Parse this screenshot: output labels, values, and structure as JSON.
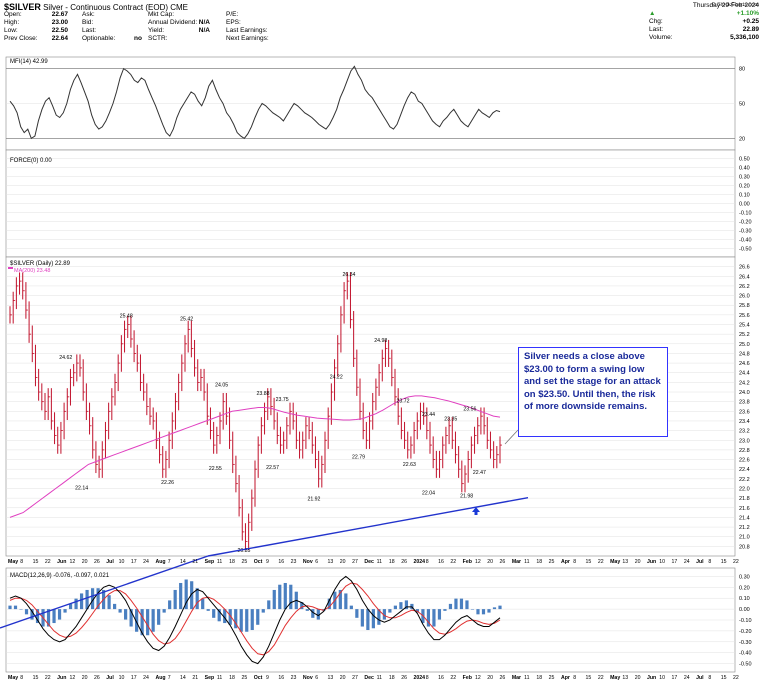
{
  "header": {
    "symbol": "$SILVER",
    "subtitle": "Silver - Continuous Contract (EOD) CME",
    "credit": "© StockCharts.com",
    "date": "Thursday 29-Feb-2024",
    "stats_left": [
      {
        "label": "Open:",
        "value": "22.67"
      },
      {
        "label": "High:",
        "value": "23.00"
      },
      {
        "label": "Low:",
        "value": "22.50"
      },
      {
        "label": "Prev Close:",
        "value": "22.64"
      }
    ],
    "stats_mid1": [
      {
        "label": "Ask:",
        "value": ""
      },
      {
        "label": "Bid:",
        "value": ""
      },
      {
        "label": "Last:",
        "value": ""
      },
      {
        "label": "Optionable:",
        "value": "no"
      }
    ],
    "stats_mid2": [
      {
        "label": "Mkt Cap:",
        "value": ""
      },
      {
        "label": "Annual Dividend:",
        "value": "N/A"
      },
      {
        "label": "Yield:",
        "value": "N/A"
      },
      {
        "label": "SCTR:",
        "value": ""
      }
    ],
    "stats_mid3": [
      {
        "label": "P/E:",
        "value": ""
      },
      {
        "label": "EPS:",
        "value": ""
      },
      {
        "label": "Last Earnings:",
        "value": ""
      },
      {
        "label": "Next Earnings:",
        "value": ""
      }
    ],
    "stats_right": [
      {
        "label": "",
        "value": "+1.10%"
      },
      {
        "label": "Chg:",
        "value": "+0.25"
      },
      {
        "label": "Last:",
        "value": "22.89"
      },
      {
        "label": "Volume:",
        "value": "5,336,100"
      }
    ],
    "up_color": "#2a9d2a"
  },
  "chart_data": [
    {
      "type": "line",
      "title": "MFI(14) 42.99",
      "ylim": [
        10,
        90
      ],
      "ticks": [
        20,
        50,
        80
      ],
      "color": "#333333",
      "values": [
        52,
        48,
        42,
        30,
        25,
        28,
        20,
        22,
        35,
        45,
        52,
        55,
        48,
        40,
        38,
        42,
        50,
        62,
        70,
        75,
        68,
        60,
        52,
        40,
        32,
        28,
        30,
        35,
        42,
        50,
        60,
        72,
        80,
        78,
        75,
        70,
        68,
        72,
        70,
        62,
        55,
        48,
        40,
        32,
        25,
        22,
        28,
        38,
        45,
        50,
        55,
        60,
        58,
        52,
        48,
        55,
        65,
        70,
        62,
        55,
        50,
        42,
        38,
        32,
        25,
        22,
        20,
        24,
        30,
        38,
        45,
        50,
        48,
        45,
        42,
        40,
        38,
        35,
        40,
        45,
        50,
        48,
        45,
        42,
        40,
        38,
        35,
        32,
        30,
        28,
        32,
        38,
        45,
        55,
        62,
        70,
        78,
        82,
        75,
        70,
        62,
        58,
        55,
        50,
        45,
        40,
        35,
        30,
        28,
        32,
        40,
        48,
        55,
        60,
        58,
        52,
        50,
        45,
        40,
        35,
        32,
        30,
        35,
        38,
        42,
        45,
        40,
        35,
        32,
        30,
        35,
        40,
        45,
        42,
        40,
        38,
        42,
        44,
        43
      ],
      "grid": true
    },
    {
      "type": "line",
      "title": "FORCE(0) 0.00",
      "ylim": [
        -0.55,
        0.55
      ],
      "ticks": [
        0.5,
        0.4,
        0.3,
        0.2,
        0.1,
        0.0,
        -0.1,
        -0.2,
        -0.3,
        -0.4,
        -0.5
      ],
      "values": []
    },
    {
      "type": "bar",
      "title": "$SILVER (Daily) 22.89",
      "legend": [
        "MA(200) 23.48"
      ],
      "ma_color": "#e040c0",
      "bar_color": "#c0102a",
      "ylim": [
        20.6,
        26.8
      ],
      "ticks": [
        26.6,
        26.4,
        26.2,
        26.0,
        25.8,
        25.6,
        25.4,
        25.2,
        25.0,
        24.8,
        24.6,
        24.4,
        24.2,
        24.0,
        23.8,
        23.6,
        23.4,
        23.2,
        23.0,
        22.8,
        22.6,
        22.4,
        22.2,
        22.0,
        21.8,
        21.6,
        21.4,
        21.2,
        21.0,
        20.8
      ],
      "closes": [
        25.6,
        25.9,
        26.2,
        26.3,
        26.1,
        25.7,
        25.2,
        24.8,
        24.3,
        24.0,
        23.8,
        23.6,
        23.9,
        23.4,
        23.1,
        22.9,
        23.2,
        23.6,
        23.9,
        24.3,
        24.4,
        24.6,
        24.5,
        24.0,
        23.6,
        23.3,
        22.8,
        22.5,
        22.4,
        22.8,
        23.2,
        23.6,
        23.9,
        24.2,
        24.6,
        25.0,
        25.3,
        25.4,
        25.1,
        24.8,
        24.6,
        24.2,
        24.0,
        23.7,
        23.5,
        23.4,
        23.0,
        22.7,
        22.4,
        22.6,
        23.0,
        23.4,
        23.8,
        24.2,
        24.6,
        25.0,
        25.3,
        24.9,
        24.5,
        24.2,
        24.3,
        24.0,
        23.5,
        23.2,
        22.9,
        23.1,
        23.4,
        23.8,
        23.5,
        23.0,
        22.5,
        22.1,
        21.6,
        21.1,
        20.9,
        21.3,
        21.8,
        22.4,
        22.9,
        23.3,
        23.6,
        23.9,
        23.7,
        23.4,
        23.1,
        22.9,
        23.0,
        23.3,
        23.6,
        23.4,
        23.0,
        22.8,
        23.0,
        23.3,
        23.2,
        22.9,
        22.6,
        22.2,
        22.5,
        23.0,
        23.5,
        24.0,
        24.5,
        25.0,
        25.6,
        26.1,
        26.3,
        25.5,
        24.7,
        24.1,
        23.6,
        23.2,
        23.0,
        23.4,
        23.8,
        24.1,
        24.4,
        24.7,
        24.9,
        24.7,
        24.3,
        23.9,
        23.5,
        23.2,
        23.0,
        22.8,
        22.9,
        23.2,
        23.4,
        23.6,
        23.5,
        23.2,
        22.9,
        22.6,
        22.4,
        22.6,
        22.9,
        23.1,
        23.3,
        23.0,
        22.7,
        22.4,
        22.1,
        22.3,
        22.6,
        22.9,
        23.1,
        23.3,
        23.5,
        23.3,
        23.0,
        22.8,
        22.6,
        22.7,
        22.9
      ],
      "ma200": [
        21.4,
        21.45,
        21.5,
        21.6,
        21.7,
        21.8,
        21.9,
        22.0,
        22.1,
        22.2,
        22.3,
        22.4,
        22.5,
        22.55,
        22.6,
        22.65,
        22.7,
        22.75,
        22.8,
        22.85,
        22.9,
        22.95,
        23.0,
        23.05,
        23.1,
        23.15,
        23.2,
        23.25,
        23.3,
        23.35,
        23.4,
        23.45,
        23.5,
        23.55,
        23.6,
        23.62,
        23.64,
        23.66,
        23.68,
        23.68,
        23.66,
        23.62,
        23.58,
        23.55,
        23.52,
        23.5,
        23.48,
        23.46,
        23.45,
        23.44,
        23.43,
        23.42,
        23.42,
        23.43,
        23.45,
        23.5,
        23.55,
        23.62,
        23.7,
        23.78,
        23.85,
        23.9,
        23.92,
        23.92,
        23.9,
        23.88,
        23.85,
        23.82,
        23.78,
        23.74,
        23.7,
        23.65,
        23.6,
        23.55,
        23.5,
        23.48
      ],
      "annotations": [
        {
          "label": "26.34",
          "x": 107,
          "y": 26.34
        },
        {
          "label": "25.48",
          "x": 37,
          "y": 25.48
        },
        {
          "label": "25.42",
          "x": 56,
          "y": 25.42
        },
        {
          "label": "24.62",
          "x": 18,
          "y": 24.62
        },
        {
          "label": "24.98",
          "x": 117,
          "y": 24.98
        },
        {
          "label": "24.22",
          "x": 103,
          "y": 24.22
        },
        {
          "label": "24.05",
          "x": 67,
          "y": 24.05
        },
        {
          "label": "23.88",
          "x": 80,
          "y": 23.88
        },
        {
          "label": "23.75",
          "x": 86,
          "y": 23.75
        },
        {
          "label": "23.72",
          "x": 124,
          "y": 23.72
        },
        {
          "label": "23.44",
          "x": 132,
          "y": 23.44
        },
        {
          "label": "23.56",
          "x": 145,
          "y": 23.56
        },
        {
          "label": "23.35",
          "x": 139,
          "y": 23.35
        },
        {
          "label": "22.79",
          "x": 110,
          "y": 22.79
        },
        {
          "label": "22.63",
          "x": 126,
          "y": 22.63
        },
        {
          "label": "22.55",
          "x": 65,
          "y": 22.55
        },
        {
          "label": "22.57",
          "x": 83,
          "y": 22.57
        },
        {
          "label": "22.47",
          "x": 148,
          "y": 22.47
        },
        {
          "label": "22.26",
          "x": 50,
          "y": 22.26
        },
        {
          "label": "22.14",
          "x": 23,
          "y": 22.14
        },
        {
          "label": "22.04",
          "x": 132,
          "y": 22.04
        },
        {
          "label": "21.92",
          "x": 96,
          "y": 21.92
        },
        {
          "label": "21.98",
          "x": 144,
          "y": 21.98
        },
        {
          "label": "20.85",
          "x": 74,
          "y": 20.85
        }
      ],
      "callout": "Silver needs a close above $23.00 to form a swing low and set the stage for an attack on $23.50. Until then, the risk of more downside remains.",
      "trendline_color": "#2233cc"
    },
    {
      "type": "line",
      "title": "MACD(12,26,9) -0.076, -0.097, 0.021",
      "ylim": [
        -0.55,
        0.35
      ],
      "ticks": [
        0.3,
        0.2,
        0.1,
        0.0,
        -0.1,
        -0.2,
        -0.3,
        -0.4,
        -0.5
      ],
      "macd": [
        0.1,
        0.12,
        0.1,
        0.05,
        -0.02,
        -0.1,
        -0.18,
        -0.24,
        -0.28,
        -0.3,
        -0.28,
        -0.22,
        -0.16,
        -0.08,
        0.0,
        0.08,
        0.15,
        0.2,
        0.22,
        0.2,
        0.15,
        0.08,
        -0.02,
        -0.12,
        -0.22,
        -0.3,
        -0.36,
        -0.38,
        -0.34,
        -0.26,
        -0.16,
        -0.05,
        0.06,
        0.14,
        0.18,
        0.16,
        0.1,
        0.04,
        -0.02,
        -0.08,
        -0.15,
        -0.24,
        -0.34,
        -0.42,
        -0.48,
        -0.5,
        -0.44,
        -0.34,
        -0.22,
        -0.1,
        0.0,
        0.06,
        0.08,
        0.06,
        0.02,
        -0.03,
        -0.06,
        -0.02,
        0.08,
        0.18,
        0.26,
        0.3,
        0.26,
        0.18,
        0.08,
        0.0,
        -0.06,
        -0.1,
        -0.12,
        -0.1,
        -0.06,
        -0.02,
        0.02,
        0.02,
        -0.04,
        -0.14,
        -0.22,
        -0.28,
        -0.28,
        -0.24,
        -0.18,
        -0.12,
        -0.08,
        -0.06,
        -0.1,
        -0.14,
        -0.16,
        -0.16,
        -0.12,
        -0.08
      ],
      "signal": [
        0.08,
        0.1,
        0.1,
        0.08,
        0.04,
        -0.02,
        -0.08,
        -0.14,
        -0.2,
        -0.24,
        -0.26,
        -0.25,
        -0.22,
        -0.17,
        -0.11,
        -0.04,
        0.03,
        0.09,
        0.14,
        0.17,
        0.17,
        0.14,
        0.08,
        0.01,
        -0.07,
        -0.15,
        -0.23,
        -0.29,
        -0.32,
        -0.31,
        -0.27,
        -0.2,
        -0.11,
        -0.02,
        0.06,
        0.1,
        0.11,
        0.09,
        0.05,
        0.0,
        -0.06,
        -0.13,
        -0.21,
        -0.29,
        -0.36,
        -0.41,
        -0.42,
        -0.39,
        -0.33,
        -0.24,
        -0.15,
        -0.08,
        -0.02,
        0.02,
        0.03,
        0.02,
        0.0,
        -0.01,
        0.02,
        0.08,
        0.15,
        0.21,
        0.24,
        0.23,
        0.18,
        0.12,
        0.05,
        -0.01,
        -0.06,
        -0.08,
        -0.08,
        -0.06,
        -0.03,
        -0.01,
        -0.02,
        -0.06,
        -0.12,
        -0.18,
        -0.22,
        -0.23,
        -0.21,
        -0.18,
        -0.14,
        -0.11,
        -0.1,
        -0.11,
        -0.13,
        -0.14,
        -0.13,
        -0.1
      ],
      "macd_color": "#000000",
      "signal_color": "#e03030",
      "hist_color": "#4a7fc0"
    }
  ],
  "x_axis": {
    "labels": [
      "May",
      "8",
      "15",
      "22",
      "Jun",
      "12",
      "20",
      "26",
      "Jul",
      "10",
      "17",
      "24",
      "Aug",
      "7",
      "14",
      "21",
      "Sep",
      "11",
      "18",
      "25",
      "Oct",
      "9",
      "16",
      "23",
      "Nov",
      "6",
      "13",
      "20",
      "27",
      "Dec",
      "11",
      "18",
      "26",
      "2024",
      "8",
      "16",
      "22",
      "Feb",
      "12",
      "20",
      "26",
      "Mar",
      "11",
      "18",
      "25",
      "Apr",
      "8",
      "15",
      "22",
      "May",
      "13",
      "20",
      "Jun",
      "10",
      "17",
      "24",
      "Jul",
      "8",
      "15",
      "22"
    ],
    "bold": [
      "May",
      "Jun",
      "Jul",
      "Aug",
      "Sep",
      "Oct",
      "Nov",
      "Dec",
      "2024",
      "Feb",
      "Mar",
      "Apr",
      "Jun",
      "Jul"
    ]
  }
}
